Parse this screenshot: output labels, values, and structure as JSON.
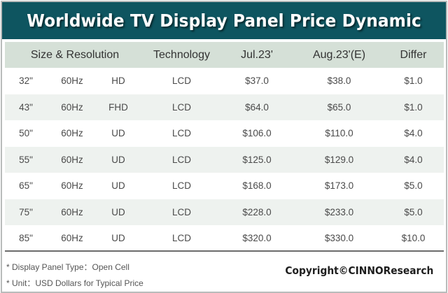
{
  "title": "Worldwide TV Display Panel Price Dynamic",
  "colors": {
    "title_bg": "#0e5560",
    "header_bg": "#d5e0d7",
    "alt_row_bg": "#eef2ef"
  },
  "columns": [
    "Size & Resolution",
    "Technology",
    "Jul.23'",
    "Aug.23'(E)",
    "Differ"
  ],
  "rows": [
    {
      "size": "32\"",
      "rate": "60Hz",
      "res": "HD",
      "tech": "LCD",
      "jul": "$37.0",
      "aug": "$38.0",
      "diff": "$1.0"
    },
    {
      "size": "43\"",
      "rate": "60Hz",
      "res": "FHD",
      "tech": "LCD",
      "jul": "$64.0",
      "aug": "$65.0",
      "diff": "$1.0"
    },
    {
      "size": "50\"",
      "rate": "60Hz",
      "res": "UD",
      "tech": "LCD",
      "jul": "$106.0",
      "aug": "$110.0",
      "diff": "$4.0"
    },
    {
      "size": "55\"",
      "rate": "60Hz",
      "res": "UD",
      "tech": "LCD",
      "jul": "$125.0",
      "aug": "$129.0",
      "diff": "$4.0"
    },
    {
      "size": "65\"",
      "rate": "60Hz",
      "res": "UD",
      "tech": "LCD",
      "jul": "$168.0",
      "aug": "$173.0",
      "diff": "$5.0"
    },
    {
      "size": "75\"",
      "rate": "60Hz",
      "res": "UD",
      "tech": "LCD",
      "jul": "$228.0",
      "aug": "$233.0",
      "diff": "$5.0"
    },
    {
      "size": "85\"",
      "rate": "60Hz",
      "res": "UD",
      "tech": "LCD",
      "jul": "$320.0",
      "aug": "$330.0",
      "diff": "$10.0"
    }
  ],
  "footnotes": [
    "* Display Panel Type：Open Cell",
    "* Unit：USD Dollars for Typical Price"
  ],
  "copyright": "Copyright©CINNOResearch"
}
